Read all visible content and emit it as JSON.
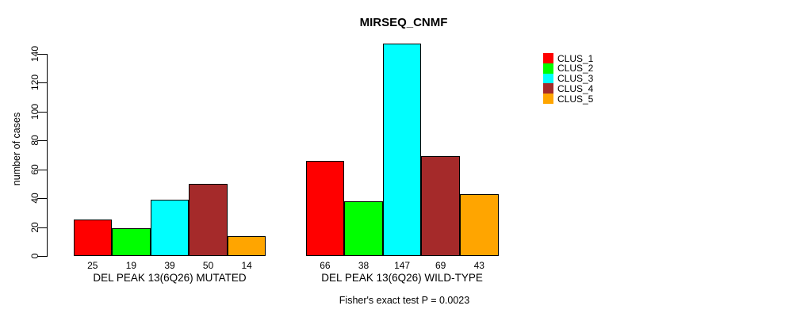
{
  "chart_data": {
    "type": "bar",
    "title": "MIRSEQ_CNMF",
    "ylabel": "number of cases",
    "xlabel": "",
    "ylim": [
      0,
      148
    ],
    "yticks": [
      0,
      20,
      40,
      60,
      80,
      100,
      120,
      140
    ],
    "grid": false,
    "legend_position": "top-right",
    "background": "#ffffff",
    "axis_color": "#000000",
    "categories": [
      "DEL PEAK 13(6Q26) MUTATED",
      "DEL PEAK 13(6Q26) WILD-TYPE"
    ],
    "series": [
      {
        "name": "CLUS_1",
        "color": "#ff0000",
        "values": [
          25,
          66
        ]
      },
      {
        "name": "CLUS_2",
        "color": "#00ff00",
        "values": [
          19,
          38
        ]
      },
      {
        "name": "CLUS_3",
        "color": "#00ffff",
        "values": [
          39,
          147
        ]
      },
      {
        "name": "CLUS_4",
        "color": "#a52a2a",
        "values": [
          50,
          69
        ]
      },
      {
        "name": "CLUS_5",
        "color": "#ffa500",
        "values": [
          14,
          43
        ]
      }
    ],
    "bar_value_labels_shown": true,
    "annotation": "Fisher's exact test P = 0.0023"
  }
}
